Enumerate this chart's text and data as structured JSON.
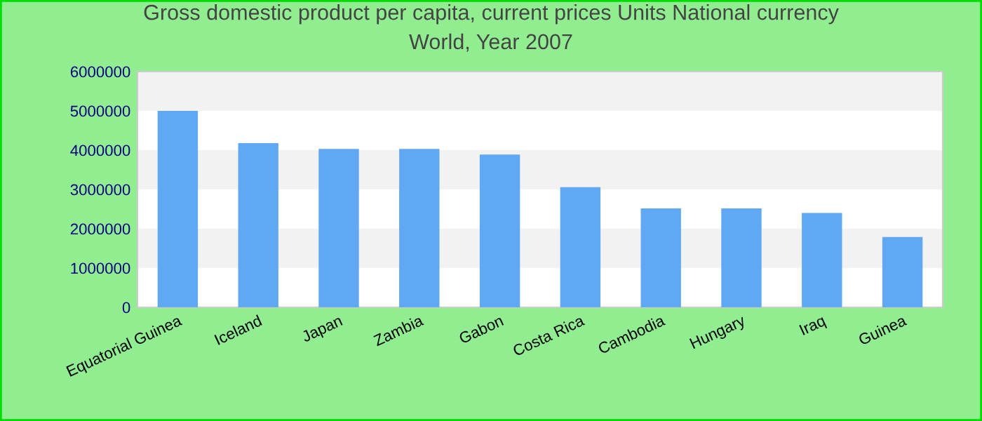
{
  "chart_data": {
    "type": "bar",
    "title": "Gross domestic product per capita, current prices Units National currency\nWorld, Year 2007",
    "categories": [
      "Equatorial Guinea",
      "Iceland",
      "Japan",
      "Zambia",
      "Gabon",
      "Costa Rica",
      "Cambodia",
      "Hungary",
      "Iraq",
      "Guinea"
    ],
    "values": [
      5000000,
      4180000,
      4030000,
      4030000,
      3890000,
      3060000,
      2520000,
      2520000,
      2400000,
      1790000
    ],
    "color": "#60a8f4",
    "ylim": [
      0,
      6000000
    ],
    "yticks": [
      0,
      1000000,
      2000000,
      3000000,
      4000000,
      5000000,
      6000000
    ],
    "bands": [
      {
        "axis": "y",
        "from": 1000000,
        "to": 2000000,
        "color": "#f2f2f2"
      },
      {
        "axis": "y",
        "from": 3000000,
        "to": 4000000,
        "color": "#f2f2f2"
      },
      {
        "axis": "y",
        "from": 5000000,
        "to": 6000000,
        "color": "#f2f2f2"
      }
    ]
  }
}
